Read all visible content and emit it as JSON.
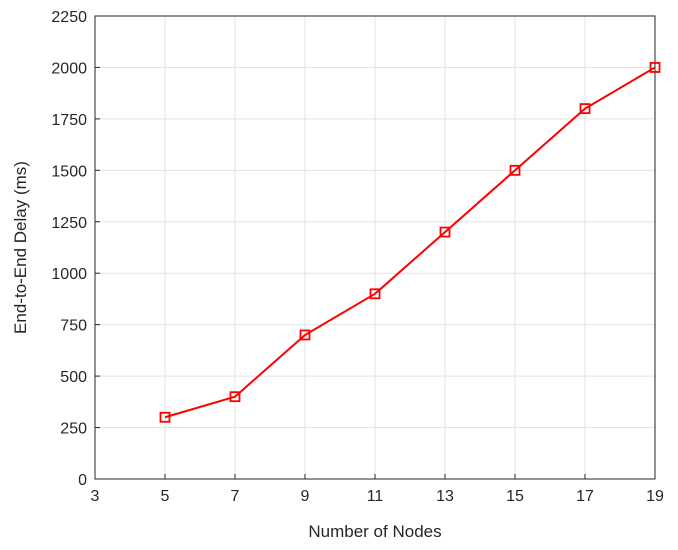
{
  "chart_data": {
    "type": "line",
    "xlabel": "Number of Nodes",
    "ylabel": "End-to-End Delay (ms)",
    "xlim": [
      3,
      19
    ],
    "ylim": [
      0,
      2250
    ],
    "xticks": [
      3,
      5,
      7,
      9,
      11,
      13,
      15,
      17,
      19
    ],
    "yticks": [
      0,
      250,
      500,
      750,
      1000,
      1250,
      1500,
      1750,
      2000,
      2250
    ],
    "grid": true,
    "series": [
      {
        "color": "#ff0000",
        "marker": "square",
        "x": [
          5,
          7,
          9,
          11,
          13,
          15,
          17,
          19
        ],
        "y": [
          300,
          400,
          700,
          900,
          1200,
          1500,
          1800,
          2000
        ]
      }
    ]
  }
}
